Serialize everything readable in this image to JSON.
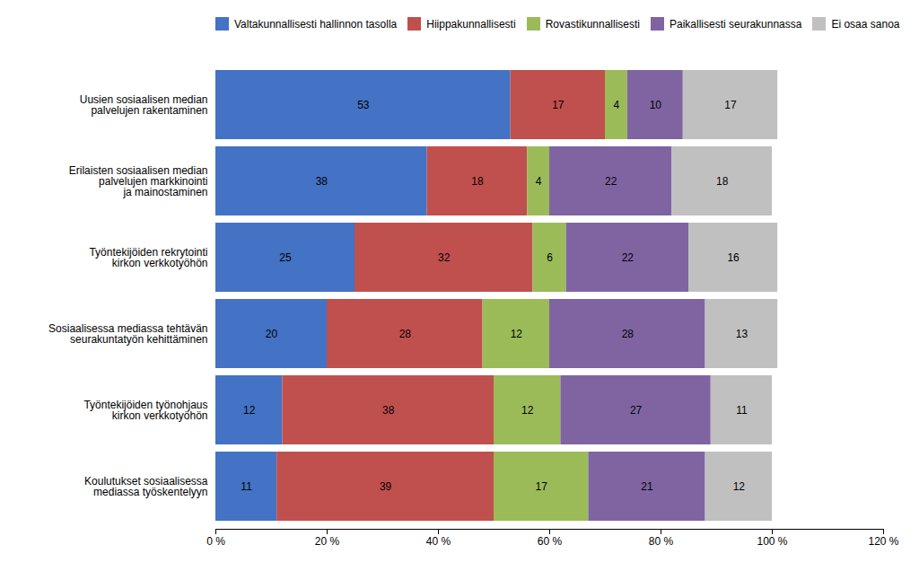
{
  "chart_data": {
    "type": "bar",
    "orientation": "horizontal",
    "stacked": true,
    "data_labels": true,
    "legend": "top",
    "grid": false,
    "categories": [
      "Uusien sosiaalisen median\npalvelujen rakentaminen",
      "Erilaisten sosiaalisen median\npalvelujen markkinointi\nja mainostaminen",
      "Työntekijöiden rekrytointi\nkirkon verkkotyöhön",
      "Sosiaalisessa mediassa tehtävän\nseurakuntatyön kehittäminen",
      "Työntekijöiden työnohjaus\nkirkon verkkotyöhön",
      "Koulutukset sosiaalisessa\nmediassa työskentelyyn"
    ],
    "series": [
      {
        "name": "Valtakunnallisesti hallinnon tasolla",
        "color": "#4472C4",
        "values": [
          53,
          38,
          25,
          20,
          12,
          11
        ]
      },
      {
        "name": "Hiippakunnallisesti",
        "color": "#C0504D",
        "values": [
          17,
          18,
          32,
          28,
          38,
          39
        ]
      },
      {
        "name": "Rovastikunnallisesti",
        "color": "#9BBB59",
        "values": [
          4,
          4,
          6,
          12,
          12,
          17
        ]
      },
      {
        "name": "Paikallisesti seurakunnassa",
        "color": "#8064A2",
        "values": [
          10,
          22,
          22,
          28,
          27,
          21
        ]
      },
      {
        "name": "Ei osaa sanoa",
        "color": "#C0C0C0",
        "values": [
          17,
          18,
          16,
          13,
          11,
          12
        ]
      }
    ],
    "xlim": [
      0,
      120
    ],
    "xticks": [
      {
        "value": 0,
        "label": "0 %"
      },
      {
        "value": 20,
        "label": "20 %"
      },
      {
        "value": 40,
        "label": "40 %"
      },
      {
        "value": 60,
        "label": "60 %"
      },
      {
        "value": 80,
        "label": "80 %"
      },
      {
        "value": 100,
        "label": "100 %"
      },
      {
        "value": 120,
        "label": "120 %"
      }
    ]
  }
}
